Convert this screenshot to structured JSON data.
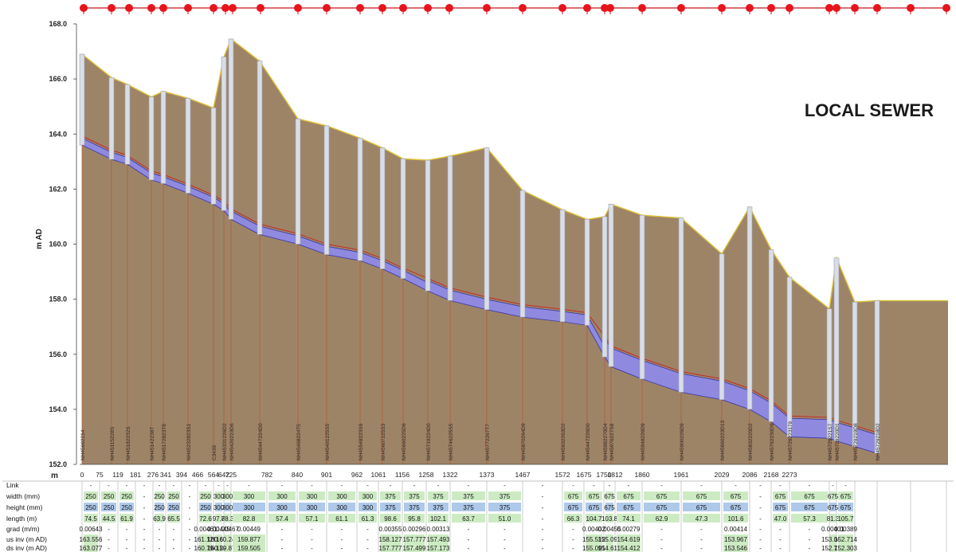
{
  "chart_data": {
    "type": "long-section",
    "title": "LOCAL SEWER",
    "ylabel": "m AD",
    "xlabel": "m",
    "ylim": [
      152.0,
      168.0
    ],
    "y_ticks": [
      "152.0",
      "154.0",
      "156.0",
      "158.0",
      "160.0",
      "162.0",
      "164.0",
      "166.0",
      "168.0"
    ],
    "x_ticks": [
      "0",
      "75",
      "119",
      "181",
      "276",
      "341",
      "394",
      "466",
      "564",
      "642",
      "725",
      "782",
      "840",
      "901",
      "962",
      "1061",
      "1156",
      "1258",
      "1322",
      "1373",
      "1467",
      "1572",
      "1675",
      "1750",
      "1812",
      "1860",
      "1961",
      "2029",
      "2086",
      "2168",
      "2273"
    ],
    "colors": {
      "ground": "#9e8467",
      "ground_line": "#e2c23a",
      "pipe": "#8f8ae0",
      "pipe_edge": "#3a35a8",
      "manhole": "#d9dde6",
      "node": "#e8141b",
      "node_line": "#c5161c",
      "flood": "#c8201f",
      "cell_green": "#cdebc3",
      "cell_blue": "#aec9ea"
    },
    "manholes": [
      {
        "id": "NH45692214",
        "ground": 166.9,
        "invert": 163.6
      },
      {
        "id": "NH45115228S",
        "ground": 166.05,
        "invert": 163.08
      },
      {
        "id": "NH45182232S",
        "ground": 165.8,
        "invert": 162.9
      },
      {
        "id": "NH45142238T",
        "ground": 165.35,
        "invert": 162.33
      },
      {
        "id": "NH45172823T8",
        "ground": 165.55,
        "invert": 162.2
      },
      {
        "id": "NH45232823S1",
        "ground": 165.3,
        "invert": 161.85
      },
      {
        "id": "C3439",
        "ground": 164.95,
        "invert": 161.45
      },
      {
        "id": "NH45331226D2",
        "ground": 166.8,
        "invert": 161.22
      },
      {
        "id": "NH45420223D6",
        "ground": 167.45,
        "invert": 160.9
      },
      {
        "id": "NH45447224D0",
        "ground": 166.65,
        "invert": 160.35
      },
      {
        "id": "NH45468224T5",
        "ground": 164.55,
        "invert": 160.0
      },
      {
        "id": "NH45491225S5",
        "ground": 164.3,
        "invert": 159.62
      },
      {
        "id": "NH45548223S9",
        "ground": 163.85,
        "invert": 159.4
      },
      {
        "id": "NH45607225S3",
        "ground": 163.5,
        "invert": 159.1
      },
      {
        "id": "NH45660225D6",
        "ground": 163.1,
        "invert": 158.75
      },
      {
        "id": "NH45719224D0",
        "ground": 163.05,
        "invert": 158.3
      },
      {
        "id": "NH45746225S5",
        "ground": 163.2,
        "invert": 157.95
      },
      {
        "id": "NH45772267T7",
        "ground": 163.5,
        "invert": 157.62
      },
      {
        "id": "NH45870264D9",
        "ground": 161.95,
        "invert": 157.35
      },
      {
        "id": "NH45932263D2",
        "ground": 161.25,
        "invert": 157.18
      },
      {
        "id": "NH45447226D0",
        "ground": 160.9,
        "invert": 157.05
      },
      {
        "id": "NH45982270D4",
        "ground": 161.0,
        "invert": 155.9
      },
      {
        "id": "NH45976227S8",
        "ground": 161.45,
        "invert": 155.55
      },
      {
        "id": "NH45948226D9",
        "ground": 161.05,
        "invert": 155.1
      },
      {
        "id": "NH45900226D9",
        "ground": 160.95,
        "invert": 154.62
      },
      {
        "id": "NH45860223D13",
        "ground": 159.65,
        "invert": 154.35
      },
      {
        "id": "NH45832220D2",
        "ground": 161.35,
        "invert": 154.0
      },
      {
        "id": "NH45792230D9",
        "ground": 159.8,
        "invert": 153.55
      },
      {
        "id": "NH45729223179",
        "ground": 158.8,
        "invert": 153.0
      },
      {
        "id": "NH45729221S7",
        "ground": 157.65,
        "invert": 152.95
      },
      {
        "id": "NH45729220D1",
        "ground": 159.5,
        "invert": 152.85
      },
      {
        "id": "NH45729219D8",
        "ground": 157.9,
        "invert": 152.65
      },
      {
        "id": "NH45729218D2",
        "ground": 157.95,
        "invert": 152.4
      }
    ],
    "table": {
      "row_labels": [
        "Link",
        "width (mm)",
        "height (mm)",
        "length (m)",
        "grad (m/m)",
        "us inv (m AD)",
        "ds inv (m AD)"
      ],
      "columns": [
        {
          "width": "250",
          "height": "250",
          "length": "74.5",
          "grad": "0.00643",
          "us": "163.556",
          "ds": "163.077"
        },
        {
          "width": "250",
          "height": "250",
          "length": "44.5",
          "grad": "-",
          "us": "-",
          "ds": "-"
        },
        {
          "width": "250",
          "height": "250",
          "length": "61.9",
          "grad": "-",
          "us": "-",
          "ds": "-"
        },
        {
          "width": "-",
          "height": "-",
          "length": "-",
          "grad": "-",
          "us": "-",
          "ds": "-"
        },
        {
          "width": "250",
          "height": "250",
          "length": "63.9",
          "grad": "-",
          "us": "-",
          "ds": "-"
        },
        {
          "width": "250",
          "height": "250",
          "length": "65.5",
          "grad": "-",
          "us": "-",
          "ds": "-"
        },
        {
          "width": "-",
          "height": "-",
          "length": "-",
          "grad": "-",
          "us": "-",
          "ds": "-"
        },
        {
          "width": "250",
          "height": "250",
          "length": "72.6",
          "grad": "0.00461",
          "us": "161.129",
          "ds": "160.794"
        },
        {
          "width": "300",
          "height": "300",
          "length": "97.8",
          "grad": "0.00445",
          "us": "160.678",
          "ds": "160.243"
        },
        {
          "width": "300",
          "height": "300",
          "length": "78.3",
          "grad": "0.00467",
          "us": "160.243",
          "ds": "159.877"
        },
        {
          "width": "300",
          "height": "300",
          "length": "82.8",
          "grad": "0.00449",
          "us": "159.877",
          "ds": "159.505"
        },
        {
          "width": "300",
          "height": "300",
          "length": "57.4",
          "grad": "-",
          "us": "-",
          "ds": "-"
        },
        {
          "width": "300",
          "height": "300",
          "length": "57.1",
          "grad": "-",
          "us": "-",
          "ds": "-"
        },
        {
          "width": "300",
          "height": "300",
          "length": "61.1",
          "grad": "-",
          "us": "-",
          "ds": "-"
        },
        {
          "width": "300",
          "height": "300",
          "length": "61.3",
          "grad": "-",
          "us": "-",
          "ds": "-"
        },
        {
          "width": "375",
          "height": "375",
          "length": "98.6",
          "grad": "0.00355",
          "us": "158.127",
          "ds": "157.777"
        },
        {
          "width": "375",
          "height": "375",
          "length": "95.8",
          "grad": "0.00296",
          "us": "157.777",
          "ds": "157.499"
        },
        {
          "width": "375",
          "height": "375",
          "length": "102.1",
          "grad": "0.00313",
          "us": "157.493",
          "ds": "157.173"
        },
        {
          "width": "375",
          "height": "375",
          "length": "63.7",
          "grad": "-",
          "us": "-",
          "ds": "-"
        },
        {
          "width": "375",
          "height": "375",
          "length": "51.0",
          "grad": "-",
          "us": "-",
          "ds": "-"
        },
        {
          "width": "-",
          "height": "-",
          "length": "-",
          "grad": "-",
          "us": "-",
          "ds": "-"
        },
        {
          "width": "675",
          "height": "675",
          "length": "66.3",
          "grad": "-",
          "us": "-",
          "ds": "-"
        },
        {
          "width": "675",
          "height": "675",
          "length": "104.7",
          "grad": "0.00402",
          "us": "155.512",
          "ds": "155.091"
        },
        {
          "width": "675",
          "height": "675",
          "length": "103.8",
          "grad": "0.00455",
          "us": "155.091",
          "ds": "154.619"
        },
        {
          "width": "675",
          "height": "675",
          "length": "74.1",
          "grad": "0.00279",
          "us": "154.619",
          "ds": "154.412"
        },
        {
          "width": "675",
          "height": "675",
          "length": "62.9",
          "grad": "-",
          "us": "-",
          "ds": "-"
        },
        {
          "width": "675",
          "height": "675",
          "length": "47.3",
          "grad": "-",
          "us": "-",
          "ds": "-"
        },
        {
          "width": "675",
          "height": "675",
          "length": "101.6",
          "grad": "0.00414",
          "us": "153.967",
          "ds": "153.546"
        },
        {
          "width": "-",
          "height": "-",
          "length": "-",
          "grad": "-",
          "us": "-",
          "ds": "-"
        },
        {
          "width": "675",
          "height": "675",
          "length": "47.0",
          "grad": "-",
          "us": "-",
          "ds": "-"
        },
        {
          "width": "675",
          "height": "675",
          "length": "57.3",
          "grad": "-",
          "us": "-",
          "ds": "-"
        },
        {
          "width": "675",
          "height": "675",
          "length": "81.3",
          "grad": "0.00401",
          "us": "153.040",
          "ds": "152.714"
        },
        {
          "width": "675",
          "height": "675",
          "length": "105.7",
          "grad": "0.00389",
          "us": "152.714",
          "ds": "152.303"
        }
      ]
    }
  }
}
